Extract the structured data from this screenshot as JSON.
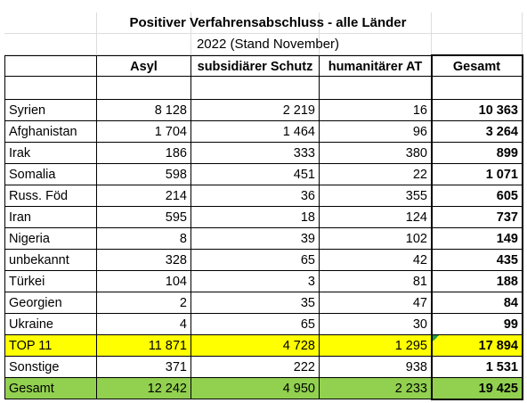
{
  "title": "Positiver Verfahrensabschluss - alle Länder",
  "subtitle": "2022 (Stand November)",
  "table": {
    "header": [
      "Asyl",
      "subsidiärer Schutz",
      "humanitärer AT",
      "Gesamt"
    ],
    "rows": [
      [
        "Syrien",
        "8 128",
        "2 219",
        "16",
        "10 363"
      ],
      [
        "Afghanistan",
        "1 704",
        "1 464",
        "96",
        "3 264"
      ],
      [
        "Irak",
        "186",
        "333",
        "380",
        "899"
      ],
      [
        "Somalia",
        "598",
        "451",
        "22",
        "1 071"
      ],
      [
        "Russ. Föd",
        "214",
        "36",
        "355",
        "605"
      ],
      [
        "Iran",
        "595",
        "18",
        "124",
        "737"
      ],
      [
        "Nigeria",
        "8",
        "39",
        "102",
        "149"
      ],
      [
        "unbekannt",
        "328",
        "65",
        "42",
        "435"
      ],
      [
        "Türkei",
        "104",
        "3",
        "81",
        "188"
      ],
      [
        "Georgien",
        "2",
        "35",
        "47",
        "84"
      ],
      [
        "Ukraine",
        "4",
        "65",
        "30",
        "99"
      ],
      [
        "TOP 11",
        "11 871",
        "4 728",
        "1 295",
        "17 894"
      ],
      [
        "Sonstige",
        "371",
        "222",
        "938",
        "1 531"
      ],
      [
        "Gesamt",
        "12 242",
        "4 950",
        "2 233",
        "19 425"
      ]
    ]
  }
}
